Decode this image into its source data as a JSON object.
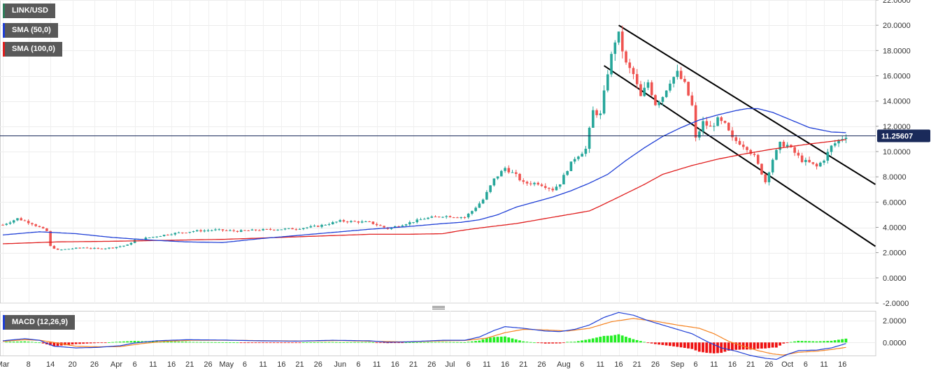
{
  "legend": {
    "symbol": "LINK/USD",
    "symbol_color": "#2e7d5b",
    "sma50_label": "SMA (50,0)",
    "sma50_color": "#1f3fd6",
    "sma100_label": "SMA (100,0)",
    "sma100_color": "#e01e1e",
    "macd_label": "MACD (12,26,9)",
    "macd_color": "#1f3fd6"
  },
  "colors": {
    "up_candle": "#26a69a",
    "down_candle": "#ef5350",
    "macd_line": "#1f3fd6",
    "signal_line": "#f5821f",
    "hist_up": "#22ee22",
    "hist_down": "#ee1111",
    "channel": "#000000",
    "current_price_line": "#1a2a5a"
  },
  "current_price": {
    "value": 11.25607,
    "label": "11.25607"
  },
  "chart_data": [
    {
      "type": "candlestick",
      "title": "LINK/USD",
      "ylim": [
        -2,
        22
      ],
      "y_tick_labels": [
        "22.0000",
        "20.0000",
        "18.0000",
        "16.0000",
        "14.0000",
        "12.0000",
        "10.0000",
        "8.0000",
        "6.0000",
        "4.0000",
        "2.0000",
        "0.0000",
        "-2.0000"
      ],
      "y_ticks": [
        22,
        20,
        18,
        16,
        14,
        12,
        10,
        8,
        6,
        4,
        2,
        0,
        -2
      ],
      "x_tick_labels": [
        "Mar",
        "8",
        "14",
        "20",
        "26",
        "Apr",
        "6",
        "11",
        "16",
        "21",
        "26",
        "May",
        "6",
        "11",
        "16",
        "21",
        "26",
        "Jun",
        "6",
        "11",
        "16",
        "21",
        "26",
        "Jul",
        "6",
        "11",
        "16",
        "21",
        "26",
        "Aug",
        "6",
        "11",
        "16",
        "21",
        "26",
        "Sep",
        "6",
        "11",
        "16",
        "21",
        "26",
        "Oct",
        "6",
        "11",
        "16"
      ],
      "x_tick_days": [
        0,
        7,
        13,
        19,
        25,
        31,
        36,
        41,
        46,
        51,
        56,
        61,
        66,
        71,
        76,
        81,
        86,
        92,
        97,
        102,
        107,
        112,
        117,
        122,
        127,
        132,
        137,
        142,
        147,
        153,
        158,
        163,
        168,
        173,
        178,
        184,
        189,
        194,
        199,
        204,
        209,
        214,
        219,
        224,
        229
      ],
      "days_total": 232,
      "close_keypoints": [
        [
          0,
          4.2
        ],
        [
          4,
          4.7
        ],
        [
          8,
          4.3
        ],
        [
          10,
          4.0
        ],
        [
          12,
          3.7
        ],
        [
          13,
          2.5
        ],
        [
          15,
          2.2
        ],
        [
          18,
          2.3
        ],
        [
          22,
          2.4
        ],
        [
          26,
          2.3
        ],
        [
          30,
          2.4
        ],
        [
          34,
          2.6
        ],
        [
          36,
          3.0
        ],
        [
          40,
          3.2
        ],
        [
          46,
          3.5
        ],
        [
          52,
          3.7
        ],
        [
          58,
          3.8
        ],
        [
          64,
          3.7
        ],
        [
          70,
          3.8
        ],
        [
          80,
          3.9
        ],
        [
          86,
          4.1
        ],
        [
          92,
          4.5
        ],
        [
          100,
          4.4
        ],
        [
          105,
          3.9
        ],
        [
          110,
          4.3
        ],
        [
          115,
          4.7
        ],
        [
          120,
          4.9
        ],
        [
          126,
          4.8
        ],
        [
          128,
          5.3
        ],
        [
          131,
          6.2
        ],
        [
          134,
          7.8
        ],
        [
          137,
          8.7
        ],
        [
          140,
          8.1
        ],
        [
          142,
          7.5
        ],
        [
          146,
          7.5
        ],
        [
          150,
          7.0
        ],
        [
          152,
          7.5
        ],
        [
          154,
          8.6
        ],
        [
          156,
          9.5
        ],
        [
          159,
          10.2
        ],
        [
          161,
          13.2
        ],
        [
          163,
          12.9
        ],
        [
          165,
          16.3
        ],
        [
          167,
          18.8
        ],
        [
          168,
          19.2
        ],
        [
          170,
          16.9
        ],
        [
          172,
          16.1
        ],
        [
          174,
          14.3
        ],
        [
          176,
          15.5
        ],
        [
          178,
          13.8
        ],
        [
          180,
          14.4
        ],
        [
          182,
          15.6
        ],
        [
          184,
          16.2
        ],
        [
          186,
          15.3
        ],
        [
          188,
          13.6
        ],
        [
          189,
          11.0
        ],
        [
          191,
          12.3
        ],
        [
          193,
          11.9
        ],
        [
          195,
          12.5
        ],
        [
          197,
          12.1
        ],
        [
          199,
          11.0
        ],
        [
          201,
          10.7
        ],
        [
          203,
          10.3
        ],
        [
          205,
          9.6
        ],
        [
          207,
          8.3
        ],
        [
          208,
          7.6
        ],
        [
          210,
          9.4
        ],
        [
          212,
          10.6
        ],
        [
          214,
          10.5
        ],
        [
          216,
          9.9
        ],
        [
          218,
          9.3
        ],
        [
          220,
          9.1
        ],
        [
          222,
          8.8
        ],
        [
          224,
          9.4
        ],
        [
          226,
          10.4
        ],
        [
          228,
          10.9
        ],
        [
          230,
          11.25
        ]
      ],
      "sma50_keypoints": [
        [
          0,
          3.4
        ],
        [
          10,
          3.65
        ],
        [
          20,
          3.5
        ],
        [
          30,
          3.2
        ],
        [
          40,
          3.0
        ],
        [
          50,
          2.85
        ],
        [
          60,
          2.8
        ],
        [
          70,
          3.1
        ],
        [
          80,
          3.35
        ],
        [
          90,
          3.6
        ],
        [
          100,
          3.85
        ],
        [
          110,
          4.05
        ],
        [
          120,
          4.3
        ],
        [
          125,
          4.4
        ],
        [
          130,
          4.6
        ],
        [
          135,
          5.0
        ],
        [
          140,
          5.6
        ],
        [
          145,
          6.0
        ],
        [
          150,
          6.4
        ],
        [
          155,
          6.9
        ],
        [
          160,
          7.5
        ],
        [
          165,
          8.2
        ],
        [
          170,
          9.3
        ],
        [
          175,
          10.3
        ],
        [
          180,
          11.2
        ],
        [
          185,
          11.9
        ],
        [
          190,
          12.5
        ],
        [
          195,
          12.9
        ],
        [
          200,
          13.25
        ],
        [
          203,
          13.4
        ],
        [
          206,
          13.4
        ],
        [
          210,
          13.1
        ],
        [
          215,
          12.5
        ],
        [
          220,
          11.9
        ],
        [
          226,
          11.55
        ],
        [
          230,
          11.5
        ]
      ],
      "sma100_keypoints": [
        [
          0,
          2.7
        ],
        [
          15,
          2.85
        ],
        [
          30,
          2.9
        ],
        [
          50,
          3.0
        ],
        [
          60,
          3.05
        ],
        [
          75,
          3.2
        ],
        [
          90,
          3.35
        ],
        [
          100,
          3.45
        ],
        [
          110,
          3.45
        ],
        [
          120,
          3.5
        ],
        [
          125,
          3.75
        ],
        [
          130,
          3.95
        ],
        [
          140,
          4.3
        ],
        [
          150,
          4.8
        ],
        [
          160,
          5.3
        ],
        [
          163,
          5.7
        ],
        [
          168,
          6.4
        ],
        [
          175,
          7.4
        ],
        [
          180,
          8.2
        ],
        [
          188,
          8.9
        ],
        [
          195,
          9.4
        ],
        [
          202,
          9.8
        ],
        [
          210,
          10.2
        ],
        [
          220,
          10.6
        ],
        [
          230,
          10.95
        ]
      ],
      "channel_upper": [
        [
          168,
          20.0
        ],
        [
          238,
          7.4
        ]
      ],
      "channel_lower": [
        [
          164,
          16.8
        ],
        [
          238,
          2.5
        ]
      ]
    },
    {
      "type": "macd",
      "title": "MACD (12,26,9)",
      "ylim": [
        -1.2,
        2.9
      ],
      "y_ticks": [
        2,
        0
      ],
      "y_tick_labels": [
        "2.0000",
        "0.0000"
      ],
      "macd_keypoints": [
        [
          0,
          0.15
        ],
        [
          6,
          0.35
        ],
        [
          10,
          0.2
        ],
        [
          14,
          -0.35
        ],
        [
          20,
          -0.5
        ],
        [
          26,
          -0.45
        ],
        [
          32,
          -0.3
        ],
        [
          36,
          -0.05
        ],
        [
          42,
          0.15
        ],
        [
          50,
          0.25
        ],
        [
          60,
          0.22
        ],
        [
          70,
          0.15
        ],
        [
          80,
          0.12
        ],
        [
          90,
          0.2
        ],
        [
          100,
          0.15
        ],
        [
          105,
          0.02
        ],
        [
          110,
          0.05
        ],
        [
          120,
          0.2
        ],
        [
          126,
          0.2
        ],
        [
          130,
          0.5
        ],
        [
          134,
          1.1
        ],
        [
          137,
          1.45
        ],
        [
          142,
          1.3
        ],
        [
          148,
          1.05
        ],
        [
          152,
          1.0
        ],
        [
          156,
          1.2
        ],
        [
          160,
          1.6
        ],
        [
          164,
          2.3
        ],
        [
          168,
          2.75
        ],
        [
          172,
          2.5
        ],
        [
          176,
          2.0
        ],
        [
          180,
          1.6
        ],
        [
          184,
          1.2
        ],
        [
          188,
          0.8
        ],
        [
          192,
          0.1
        ],
        [
          196,
          -0.5
        ],
        [
          200,
          -0.8
        ],
        [
          204,
          -1.2
        ],
        [
          208,
          -1.45
        ],
        [
          211,
          -1.55
        ],
        [
          214,
          -1.1
        ],
        [
          217,
          -0.75
        ],
        [
          222,
          -0.7
        ],
        [
          226,
          -0.5
        ],
        [
          230,
          -0.1
        ]
      ],
      "signal_keypoints": [
        [
          0,
          0.1
        ],
        [
          6,
          0.25
        ],
        [
          10,
          0.2
        ],
        [
          14,
          0.0
        ],
        [
          20,
          -0.35
        ],
        [
          26,
          -0.4
        ],
        [
          32,
          -0.38
        ],
        [
          38,
          -0.1
        ],
        [
          44,
          0.1
        ],
        [
          52,
          0.2
        ],
        [
          62,
          0.2
        ],
        [
          72,
          0.16
        ],
        [
          82,
          0.13
        ],
        [
          92,
          0.17
        ],
        [
          102,
          0.1
        ],
        [
          110,
          0.05
        ],
        [
          120,
          0.15
        ],
        [
          126,
          0.18
        ],
        [
          132,
          0.4
        ],
        [
          137,
          0.9
        ],
        [
          142,
          1.2
        ],
        [
          148,
          1.15
        ],
        [
          154,
          1.05
        ],
        [
          160,
          1.3
        ],
        [
          166,
          1.9
        ],
        [
          172,
          2.2
        ],
        [
          178,
          1.95
        ],
        [
          184,
          1.6
        ],
        [
          190,
          1.3
        ],
        [
          194,
          0.8
        ],
        [
          198,
          0.1
        ],
        [
          202,
          -0.35
        ],
        [
          206,
          -0.75
        ],
        [
          210,
          -1.05
        ],
        [
          213,
          -1.15
        ],
        [
          217,
          -0.9
        ],
        [
          222,
          -0.8
        ],
        [
          226,
          -0.65
        ],
        [
          230,
          -0.45
        ]
      ]
    }
  ]
}
